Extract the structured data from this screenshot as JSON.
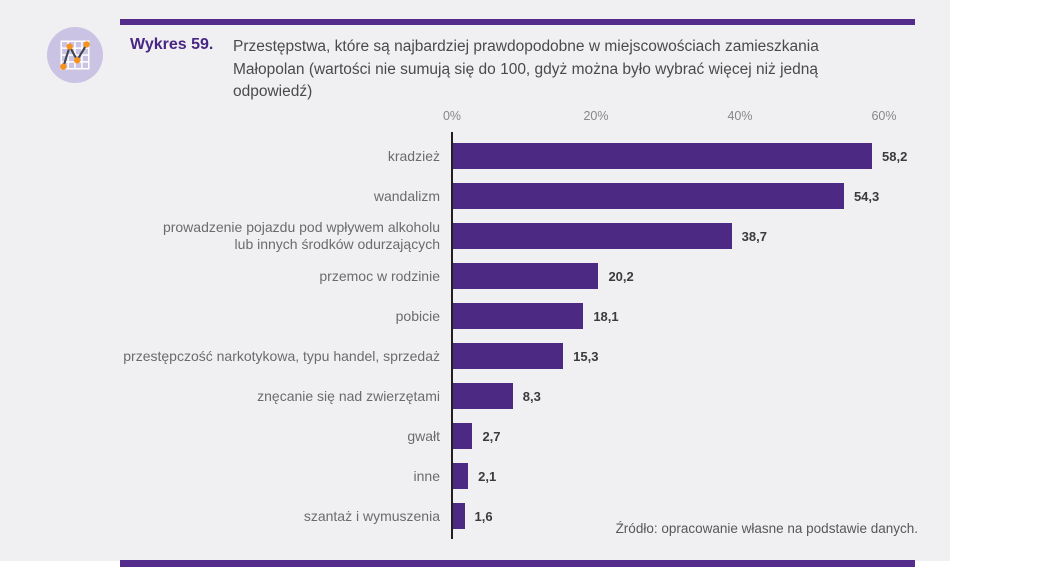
{
  "header": {
    "figure_label": "Wykres 59.",
    "title": "Przestępstwa, które są najbardziej prawdopodobne w miejscowościach zamieszkania Małopolan (wartości nie sumują się do 100, gdyż można było wybrać więcej niż jedną odpowiedź)",
    "title_lines": [
      "Przestępstwa, które są najbardziej prawdopodobne w miejscowościach zamieszkania",
      "Małopolan (wartości nie sumują się do 100, gdyż można było wybrać więcej niż jedną",
      "odpowiedź)"
    ],
    "icon": "line-chart-icon",
    "accent_color": "#542d8c",
    "icon_circle_color": "#cbc3e3",
    "icon_dot_color": "#f6921e"
  },
  "chart_data": {
    "type": "bar",
    "orientation": "horizontal",
    "title": "Przestępstwa, które są najbardziej prawdopodobne w miejscowościach zamieszkania Małopolan",
    "categories": [
      "kradzież",
      "wandalizm",
      "prowadzenie pojazdu pod wpływem alkoholu\nlub innych środków odurzających",
      "przemoc w rodzinie",
      "pobicie",
      "przestępczość narkotykowa, typu handel, sprzedaż",
      "znęcanie się nad zwierzętami",
      "gwałt",
      "inne",
      "szantaż i wymuszenia"
    ],
    "values": [
      58.2,
      54.3,
      38.7,
      20.2,
      18.1,
      15.3,
      8.3,
      2.7,
      2.1,
      1.6
    ],
    "value_labels": [
      "58,2",
      "54,3",
      "38,7",
      "20,2",
      "18,1",
      "15,3",
      "8,3",
      "2,7",
      "2,1",
      "1,6"
    ],
    "x_ticks": [
      {
        "label": "0%",
        "pct": 0
      },
      {
        "label": "20%",
        "pct": 20
      },
      {
        "label": "40%",
        "pct": 40
      },
      {
        "label": "60%",
        "pct": 60
      }
    ],
    "xlim": [
      0,
      60
    ],
    "bar_color": "#4c2a83",
    "axis_color": "#231f20",
    "grid": false,
    "legend": false
  },
  "footer": {
    "source": "Źródło: opracowanie własne na podstawie danych."
  }
}
